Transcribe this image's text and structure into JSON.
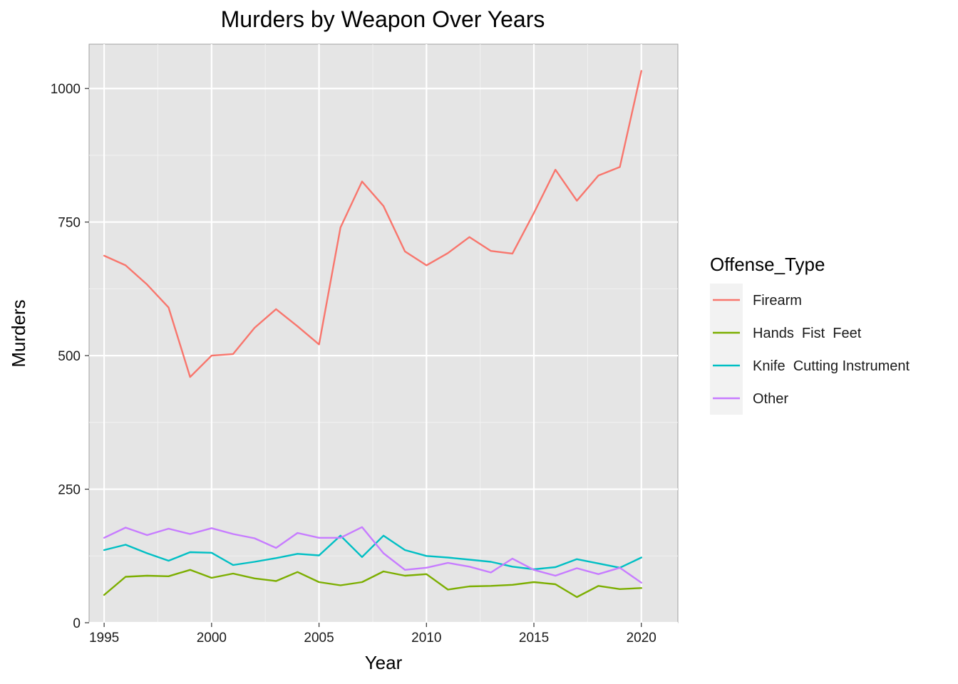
{
  "chart_data": {
    "type": "line",
    "title": "Murders by Weapon Over Years",
    "xlabel": "Year",
    "ylabel": "Murders",
    "xlim": [
      1994.3,
      2021.7
    ],
    "ylim": [
      0,
      1083
    ],
    "x_ticks": [
      1995,
      2000,
      2005,
      2010,
      2015,
      2020
    ],
    "y_ticks": [
      0,
      250,
      500,
      750,
      1000
    ],
    "grid": true,
    "legend_position": "right",
    "legend_title": "Offense_Type",
    "x": [
      1995,
      1996,
      1997,
      1998,
      1999,
      2000,
      2001,
      2002,
      2003,
      2004,
      2005,
      2006,
      2007,
      2008,
      2009,
      2010,
      2011,
      2012,
      2013,
      2014,
      2015,
      2016,
      2017,
      2018,
      2019,
      2020
    ],
    "series": [
      {
        "name": "Firearm",
        "color": "#F8766D",
        "values": [
          687,
          669,
          633,
          590,
          460,
          500,
          503,
          552,
          587,
          555,
          521,
          740,
          826,
          780,
          695,
          669,
          692,
          722,
          696,
          691,
          767,
          848,
          790,
          837,
          853,
          1033
        ]
      },
      {
        "name": "Hands  Fist  Feet",
        "color": "#7CAE00",
        "values": [
          52,
          86,
          88,
          87,
          99,
          84,
          92,
          83,
          78,
          95,
          76,
          70,
          76,
          96,
          88,
          91,
          62,
          68,
          69,
          71,
          76,
          72,
          48,
          69,
          63,
          65
        ]
      },
      {
        "name": "Knife  Cutting Instrument",
        "color": "#00BFC4",
        "values": [
          136,
          146,
          130,
          116,
          132,
          131,
          108,
          114,
          121,
          129,
          126,
          163,
          123,
          163,
          136,
          125,
          122,
          118,
          114,
          105,
          100,
          104,
          119,
          111,
          103,
          122
        ]
      },
      {
        "name": "Other",
        "color": "#C77CFF",
        "values": [
          159,
          178,
          164,
          176,
          166,
          177,
          166,
          158,
          140,
          168,
          159,
          159,
          179,
          130,
          99,
          103,
          112,
          105,
          94,
          120,
          99,
          88,
          102,
          91,
          103,
          75
        ]
      }
    ]
  }
}
